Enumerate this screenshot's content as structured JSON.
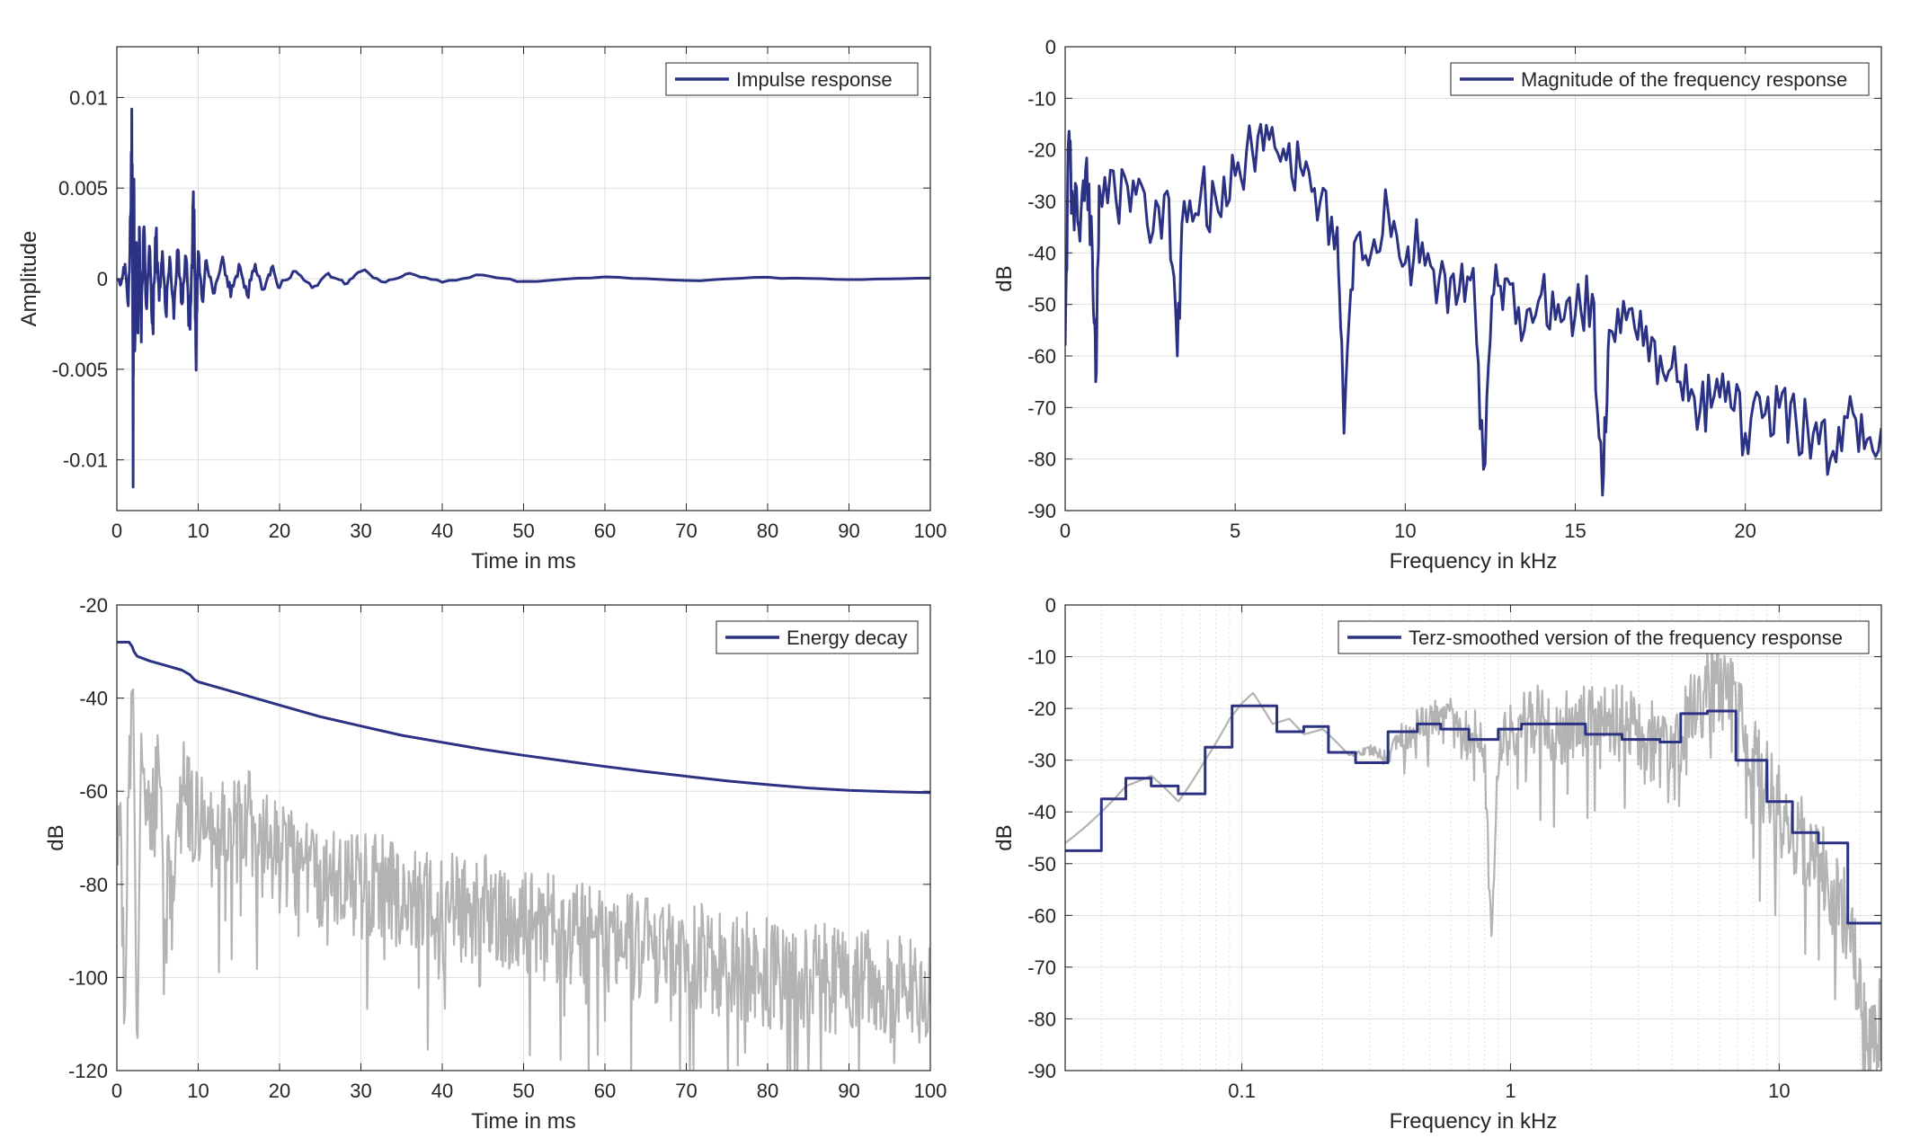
{
  "colors": {
    "series_main": "#2b3284",
    "series_gray": "#b3b3b3",
    "axis": "#262626",
    "grid": "#dfdfdf"
  },
  "chart_data": [
    {
      "id": "impulse",
      "type": "line",
      "xlabel": "Time in ms",
      "ylabel": "Amplitude",
      "xlim": [
        0,
        100
      ],
      "ylim": [
        -0.0128,
        0.0128
      ],
      "xticks": [
        0,
        10,
        20,
        30,
        40,
        50,
        60,
        70,
        80,
        90,
        100
      ],
      "xtick_labels": [
        "0",
        "10",
        "20",
        "30",
        "40",
        "50",
        "60",
        "70",
        "80",
        "90",
        "100"
      ],
      "yticks": [
        -0.01,
        -0.005,
        0,
        0.005,
        0.01
      ],
      "ytick_labels": [
        "-0.01",
        "-0.005",
        "0",
        "0.005",
        "0.01"
      ],
      "grid": true,
      "legend_position": "top-right",
      "series": [
        {
          "name": "Impulse response",
          "color": "#2b3284",
          "x": [
            0,
            0.5,
            1,
            1.4,
            1.7,
            1.9,
            2.0,
            2.1,
            2.2,
            2.4,
            2.6,
            2.8,
            3.0,
            3.3,
            3.6,
            4.0,
            4.4,
            4.8,
            5.2,
            5.6,
            6.0,
            6.5,
            7.0,
            7.5,
            8.0,
            8.5,
            9.0,
            9.3,
            9.5,
            9.7,
            10.0,
            10.5,
            11.0,
            12.0,
            13.0,
            14.0,
            15.0,
            16.0,
            17.0,
            18.0,
            19.0,
            20.0,
            22.0,
            24.0,
            26.0,
            28.0,
            30.0,
            33.0,
            36.0,
            40.0,
            45.0,
            50.0,
            60.0,
            70.0,
            80.0,
            90.0,
            100.0
          ],
          "y": [
            0,
            -0.0003,
            0.0008,
            -0.0015,
            0.0035,
            0.0063,
            -0.0115,
            0.0055,
            -0.004,
            0.002,
            -0.003,
            0.0025,
            -0.0035,
            0.0028,
            -0.0015,
            0.0018,
            -0.0025,
            0.0022,
            -0.0012,
            0.0015,
            -0.0018,
            0.0012,
            -0.0022,
            0.0016,
            -0.0014,
            0.0012,
            -0.0028,
            0.0022,
            0.0038,
            -0.0038,
            0.0015,
            -0.0012,
            0.001,
            -0.0008,
            0.0012,
            -0.001,
            0.0008,
            -0.0009,
            0.0008,
            -0.0006,
            0.0006,
            -0.0005,
            0.0004,
            -0.0005,
            0.0003,
            -0.0003,
            0.0004,
            -0.0002,
            0.0003,
            -0.0002,
            0.0002,
            -0.00015,
            0.0001,
            -0.0001,
            8e-05,
            -5e-05,
            3e-05
          ]
        }
      ]
    },
    {
      "id": "magnitude",
      "type": "line",
      "xlabel": "Frequency in kHz",
      "ylabel": "dB",
      "xlim": [
        0,
        24
      ],
      "ylim": [
        -90,
        0
      ],
      "xticks": [
        0,
        5,
        10,
        15,
        20
      ],
      "xtick_labels": [
        "0",
        "5",
        "10",
        "15",
        "20"
      ],
      "yticks": [
        0,
        -10,
        -20,
        -30,
        -40,
        -50,
        -60,
        -70,
        -80,
        -90
      ],
      "ytick_labels": [
        "0",
        "-10",
        "-20",
        "-30",
        "-40",
        "-50",
        "-60",
        "-70",
        "-80",
        "-90"
      ],
      "grid": true,
      "legend_position": "top-right",
      "series": [
        {
          "name": "Magnitude of the frequency response",
          "color": "#2b3284",
          "x": [
            0,
            0.1,
            0.2,
            0.4,
            0.6,
            0.8,
            0.9,
            1.0,
            1.5,
            2.0,
            2.5,
            3.0,
            3.3,
            3.5,
            4.0,
            4.5,
            5.0,
            5.5,
            6.0,
            6.5,
            7.0,
            7.5,
            8.0,
            8.2,
            8.5,
            9.0,
            9.5,
            10.0,
            10.5,
            11.0,
            11.5,
            12.0,
            12.3,
            12.6,
            13.0,
            13.5,
            14.0,
            14.5,
            15.0,
            15.5,
            15.8,
            16.0,
            16.5,
            17.0,
            17.5,
            18.0,
            18.5,
            19.0,
            19.5,
            20.0,
            20.5,
            21.0,
            21.5,
            22.0,
            22.5,
            23.0,
            23.5,
            24.0
          ],
          "y": [
            -58,
            -18,
            -28,
            -35,
            -24,
            -40,
            -65,
            -27,
            -30,
            -26,
            -38,
            -28,
            -60,
            -30,
            -28,
            -32,
            -25,
            -20,
            -18,
            -22,
            -25,
            -30,
            -35,
            -75,
            -38,
            -40,
            -32,
            -42,
            -38,
            -45,
            -50,
            -43,
            -82,
            -48,
            -45,
            -55,
            -48,
            -50,
            -52,
            -48,
            -87,
            -55,
            -53,
            -58,
            -60,
            -65,
            -68,
            -70,
            -65,
            -75,
            -72,
            -70,
            -73,
            -75,
            -80,
            -72,
            -78,
            -74
          ]
        }
      ]
    },
    {
      "id": "energy",
      "type": "line",
      "xlabel": "Time in ms",
      "ylabel": "dB",
      "xlim": [
        0,
        100
      ],
      "ylim": [
        -120,
        -20
      ],
      "xticks": [
        0,
        10,
        20,
        30,
        40,
        50,
        60,
        70,
        80,
        90,
        100
      ],
      "xtick_labels": [
        "0",
        "10",
        "20",
        "30",
        "40",
        "50",
        "60",
        "70",
        "80",
        "90",
        "100"
      ],
      "yticks": [
        -20,
        -40,
        -60,
        -80,
        -100,
        -120
      ],
      "ytick_labels": [
        "-20",
        "-40",
        "-60",
        "-80",
        "-100",
        "-120"
      ],
      "grid": true,
      "legend_position": "top-right",
      "series": [
        {
          "name": "Energy decay",
          "color": "#2b3284",
          "x": [
            0,
            1.5,
            1.9,
            2.1,
            2.5,
            4,
            6,
            8,
            9,
            9.5,
            10,
            12,
            15,
            20,
            25,
            30,
            35,
            40,
            45,
            50,
            55,
            60,
            65,
            70,
            75,
            80,
            85,
            90,
            95,
            100
          ],
          "y": [
            -28,
            -28,
            -29,
            -30,
            -31,
            -32,
            -33,
            -34,
            -35,
            -36,
            -36.5,
            -37.5,
            -39,
            -41.5,
            -44,
            -46,
            -48,
            -49.5,
            -51,
            -52.3,
            -53.5,
            -54.7,
            -55.8,
            -56.8,
            -57.8,
            -58.6,
            -59.3,
            -59.8,
            -60.1,
            -60.3
          ]
        },
        {
          "color": "#b3b3b3",
          "x": [
            0,
            0.5,
            1,
            1.5,
            2,
            2.5,
            3,
            4,
            5,
            6,
            8,
            10,
            12,
            15,
            20,
            25,
            30,
            35,
            40,
            45,
            50,
            55,
            60,
            65,
            70,
            75,
            80,
            85,
            90,
            95,
            100
          ],
          "y": [
            -75,
            -60,
            -95,
            -55,
            -40,
            -120,
            -55,
            -70,
            -58,
            -85,
            -60,
            -65,
            -72,
            -65,
            -75,
            -78,
            -80,
            -82,
            -85,
            -85,
            -88,
            -90,
            -92,
            -94,
            -95,
            -97,
            -99,
            -100,
            -101,
            -102,
            -103
          ],
          "noise_amplitude": [
            8,
            12,
            14,
            12,
            6,
            0,
            10,
            12,
            12,
            12,
            12,
            12,
            12,
            12,
            12,
            12,
            12,
            12,
            12,
            12,
            12,
            12,
            12,
            12,
            12,
            12,
            12,
            12,
            12,
            12,
            12
          ]
        }
      ]
    },
    {
      "id": "terz",
      "type": "line",
      "xlabel": "Frequency in kHz",
      "ylabel": "dB",
      "xscale": "log",
      "xlim": [
        0.022,
        24
      ],
      "ylim": [
        -90,
        0
      ],
      "xticks": [
        0.1,
        1,
        10
      ],
      "xtick_labels": [
        "0.1",
        "1",
        "10"
      ],
      "yticks": [
        0,
        -10,
        -20,
        -30,
        -40,
        -50,
        -60,
        -70,
        -80,
        -90
      ],
      "ytick_labels": [
        "0",
        "-10",
        "-20",
        "-30",
        "-40",
        "-50",
        "-60",
        "-70",
        "-80",
        "-90"
      ],
      "grid": true,
      "legend_position": "top-right",
      "series": [
        {
          "name": "Terz-smoothed version of the frequency response",
          "color": "#2b3284",
          "x": [
            0.022,
            0.03,
            0.03,
            0.037,
            0.037,
            0.046,
            0.046,
            0.058,
            0.058,
            0.073,
            0.073,
            0.092,
            0.092,
            0.135,
            0.135,
            0.17,
            0.17,
            0.21,
            0.21,
            0.265,
            0.265,
            0.35,
            0.35,
            0.45,
            0.45,
            0.55,
            0.55,
            0.7,
            0.7,
            0.9,
            0.9,
            1.1,
            1.1,
            1.4,
            1.4,
            1.9,
            1.9,
            2.6,
            2.6,
            3.6,
            3.6,
            4.3,
            4.3,
            5.4,
            5.4,
            6.9,
            6.9,
            9.0,
            9.0,
            11.2,
            11.2,
            14.0,
            14.0,
            18.0,
            18.0,
            24.0
          ],
          "y": [
            -47.5,
            -47.5,
            -37.5,
            -37.5,
            -33.5,
            -33.5,
            -35,
            -35,
            -36.5,
            -36.5,
            -27.5,
            -27.5,
            -19.5,
            -19.5,
            -24.5,
            -24.5,
            -23.5,
            -23.5,
            -28.5,
            -28.5,
            -30.5,
            -30.5,
            -24.5,
            -24.5,
            -23,
            -23,
            -24,
            -24,
            -26,
            -26,
            -24,
            -24,
            -23,
            -23,
            -23,
            -23,
            -25,
            -25,
            -26,
            -26,
            -26.5,
            -26.5,
            -21,
            -21,
            -20.5,
            -20.5,
            -30,
            -30,
            -38,
            -38,
            -44,
            -44,
            -46,
            -46,
            -61.5,
            -61.5
          ]
        },
        {
          "color": "#b3b3b3",
          "x": [
            0.022,
            0.03,
            0.037,
            0.046,
            0.058,
            0.073,
            0.09,
            0.1,
            0.11,
            0.13,
            0.15,
            0.17,
            0.2,
            0.25,
            0.3,
            0.35,
            0.4,
            0.5,
            0.6,
            0.7,
            0.8,
            0.85,
            0.9,
            1.0,
            1.2,
            1.5,
            2.0,
            2.5,
            3.0,
            3.5,
            4.0,
            5.0,
            6.0,
            7.0,
            8.0,
            9.0,
            10.0,
            12.0,
            14.0,
            16.0,
            18.0,
            20.0,
            22.0,
            24.0
          ],
          "y": [
            -46,
            -40,
            -35,
            -33,
            -38,
            -30,
            -22,
            -19,
            -17,
            -23,
            -22,
            -25,
            -24,
            -29,
            -28,
            -30,
            -25,
            -22,
            -23,
            -25,
            -27,
            -65,
            -28,
            -25,
            -22,
            -24,
            -22,
            -23,
            -25,
            -27,
            -30,
            -18,
            -15,
            -22,
            -30,
            -35,
            -40,
            -45,
            -48,
            -55,
            -60,
            -75,
            -85,
            -80
          ],
          "noise_amplitude": [
            0,
            0,
            0,
            0,
            0,
            0,
            0,
            0,
            0,
            0,
            0,
            0,
            0,
            0,
            1,
            2,
            3,
            4,
            5,
            6,
            6,
            0,
            6,
            6,
            7,
            7,
            7,
            8,
            8,
            8,
            9,
            9,
            9,
            9,
            9,
            9,
            9,
            9,
            9,
            9,
            9,
            9,
            9,
            9
          ]
        }
      ]
    }
  ]
}
